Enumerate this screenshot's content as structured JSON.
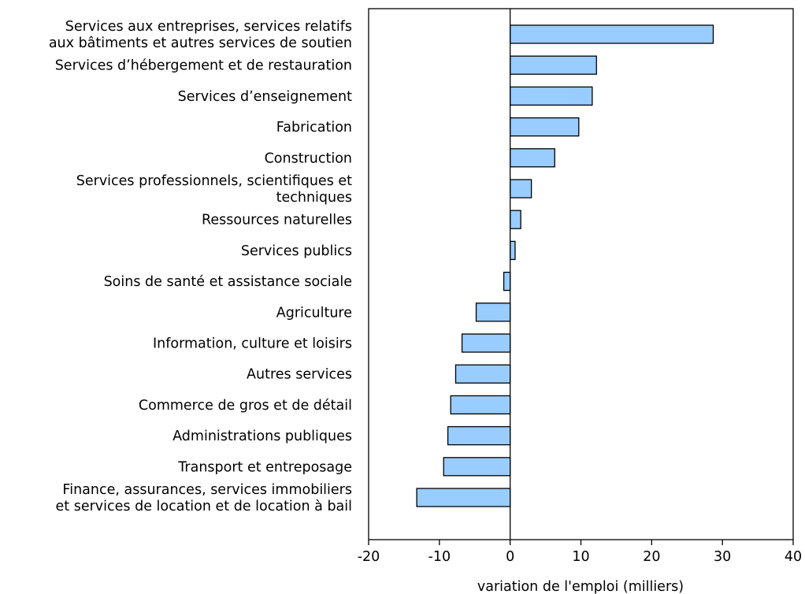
{
  "chart_data": {
    "type": "bar",
    "orientation": "horizontal",
    "title": "",
    "xlabel": "variation de l'emploi (milliers)",
    "ylabel": "",
    "xlim": [
      -20,
      40
    ],
    "xticks": [
      -20,
      -10,
      0,
      10,
      20,
      30,
      40
    ],
    "grid": false,
    "legend": "none",
    "categories": [
      [
        "Services aux entreprises, services relatifs",
        "aux bâtiments et autres services de soutien"
      ],
      [
        "Services d’hébergement et de restauration"
      ],
      [
        "Services d’enseignement"
      ],
      [
        "Fabrication"
      ],
      [
        "Construction"
      ],
      [
        "Services professionnels, scientifiques et",
        "techniques"
      ],
      [
        "Ressources naturelles"
      ],
      [
        "Services publics"
      ],
      [
        "Soins de santé et assistance sociale"
      ],
      [
        "Agriculture"
      ],
      [
        "Information, culture et loisirs"
      ],
      [
        "Autres services"
      ],
      [
        "Commerce de gros et de détail"
      ],
      [
        "Administrations publiques"
      ],
      [
        "Transport et entreposage"
      ],
      [
        "Finance, assurances, services immobiliers",
        "et services de location et de location à bail"
      ]
    ],
    "values": [
      28.7,
      12.2,
      11.6,
      9.7,
      6.3,
      3.0,
      1.5,
      0.7,
      -0.9,
      -4.8,
      -6.8,
      -7.7,
      -8.4,
      -8.8,
      -9.4,
      -13.2
    ],
    "colors": {
      "bar_fill": "#99ccff",
      "bar_stroke": "#000000"
    }
  }
}
